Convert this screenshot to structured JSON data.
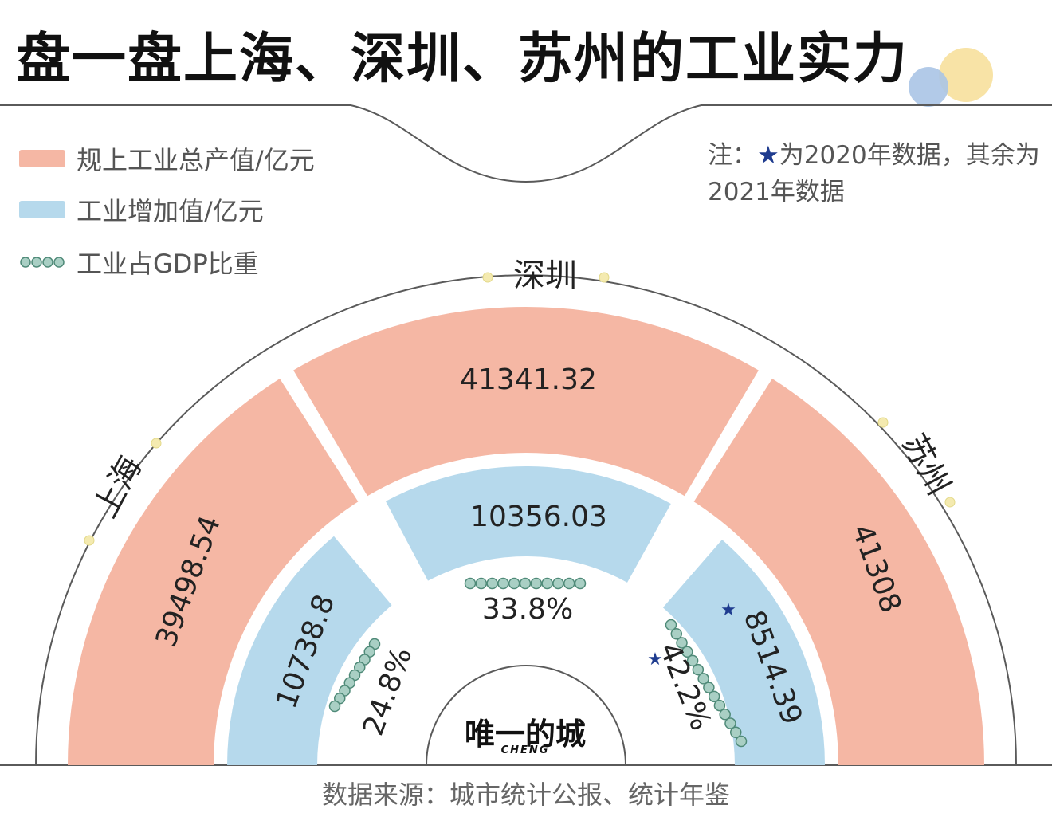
{
  "title": "盘一盘上海、深圳、苏州的工业实力",
  "legend": {
    "output": "规上工业总产值/亿元",
    "added": "工业增加值/亿元",
    "share": "工业占GDP比重"
  },
  "note": {
    "prefix": "注：",
    "star": "★",
    "text": "为2020年数据，其余为2021年数据"
  },
  "source": "数据来源：城市统计公报、统计年鉴",
  "brand": {
    "name": "唯一的城",
    "sub": "CHENG"
  },
  "colors": {
    "output": "#f5b7a4",
    "added": "#b6d9ec",
    "share_bead": "#a9cfc4",
    "arc_line": "#5a5a5a",
    "star": "#1f3c8f"
  },
  "chart_data": {
    "type": "radial-bar",
    "categories": [
      "上海",
      "深圳",
      "苏州"
    ],
    "series": [
      {
        "name": "规上工业总产值/亿元",
        "values": [
          39498.54,
          41341.32,
          41308
        ],
        "labels": [
          "39498.54",
          "41341.32",
          "41308"
        ]
      },
      {
        "name": "工业增加值/亿元",
        "values": [
          10738.8,
          10356.03,
          8514.39
        ],
        "labels": [
          "10738.8",
          "10356.03",
          "8514.39"
        ]
      },
      {
        "name": "工业占GDP比重",
        "values": [
          24.8,
          33.8,
          42.2
        ],
        "labels": [
          "24.8%",
          "33.8%",
          "42.2%"
        ]
      }
    ],
    "star_marked": [
      false,
      false,
      true
    ]
  }
}
